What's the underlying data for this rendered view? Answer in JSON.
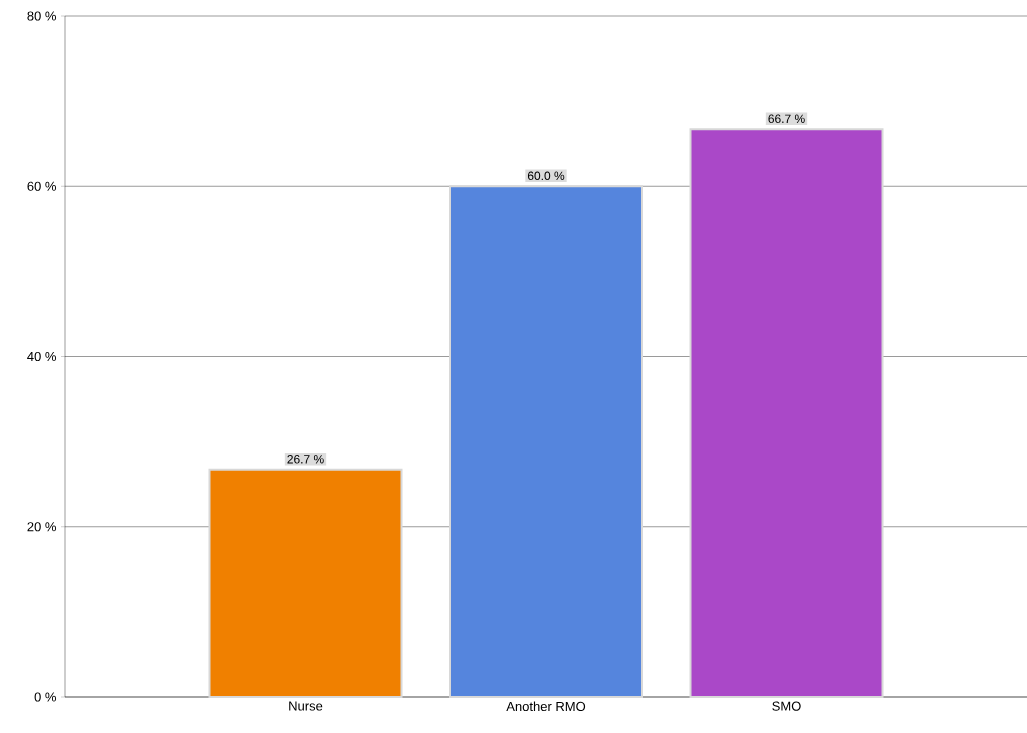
{
  "chart_data": {
    "type": "bar",
    "categories": [
      "Nurse",
      "Another RMO",
      "SMO"
    ],
    "values": [
      26.7,
      60.0,
      66.7
    ],
    "colors": [
      "#f08000",
      "#5585dd",
      "#aa48c8"
    ],
    "value_labels": [
      "26.7 %",
      "60.0 %",
      "66.7 %"
    ],
    "ylim": [
      0,
      80
    ],
    "yticks": [
      {
        "value": 0,
        "label": "0 %"
      },
      {
        "value": 20,
        "label": "20 %"
      },
      {
        "value": 40,
        "label": "40 %"
      },
      {
        "value": 60,
        "label": "60 %"
      },
      {
        "value": 80,
        "label": "80 %"
      }
    ],
    "grid": "y"
  }
}
